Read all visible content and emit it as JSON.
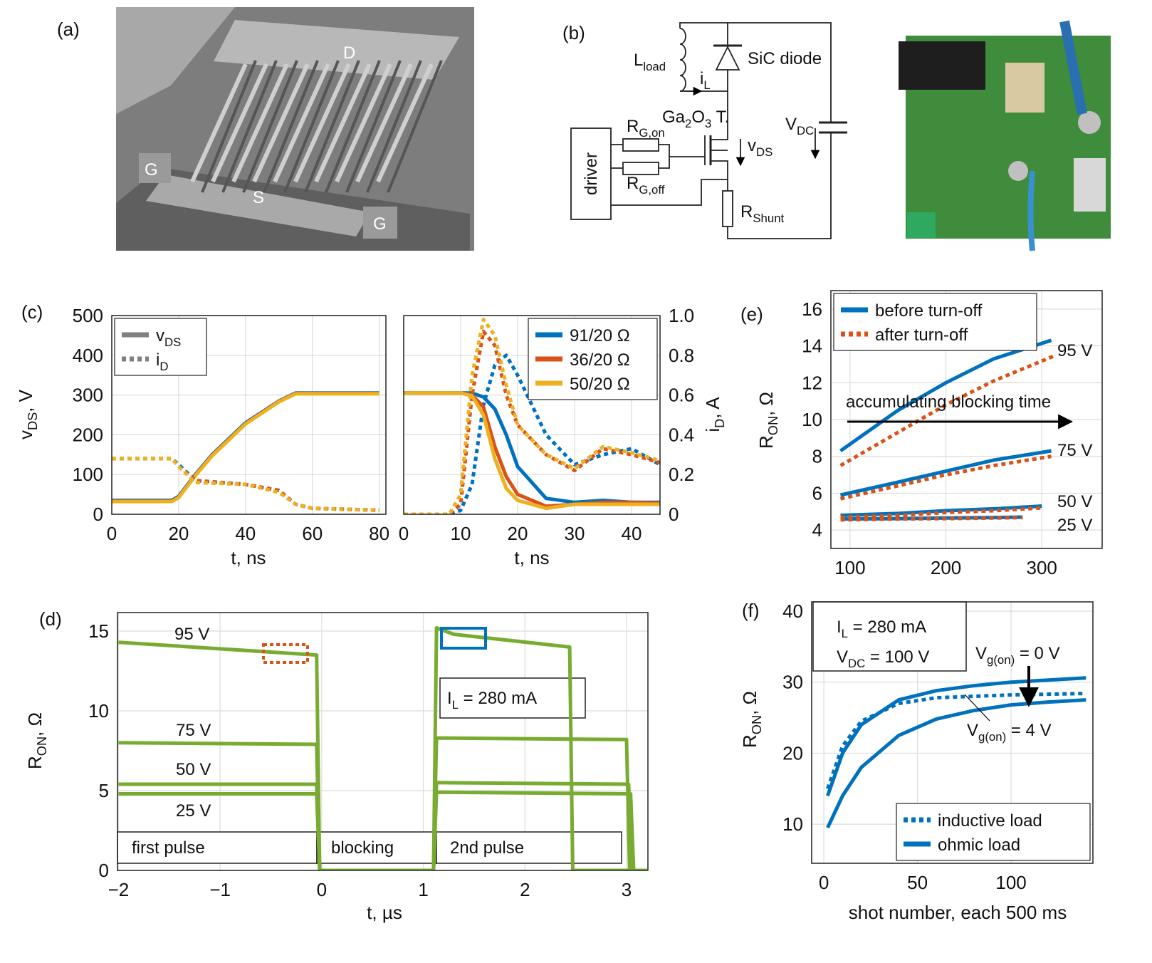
{
  "panel_labels": [
    "(a)",
    "(b)",
    "(c)",
    "(d)",
    "(e)",
    "(f)"
  ],
  "panel_a": {
    "labels": [
      "D",
      "G",
      "S",
      "G"
    ]
  },
  "panel_b": {
    "labels": [
      [
        "L",
        "load"
      ],
      [
        "i",
        "L"
      ],
      "SiC diode",
      [
        "Ga",
        "2",
        "O",
        "3",
        " T."
      ],
      [
        "R",
        "G,on"
      ],
      [
        "R",
        "G,off"
      ],
      "driver",
      [
        "v",
        "DS"
      ],
      [
        "V",
        "DC"
      ],
      [
        "R",
        "Shunt"
      ]
    ]
  },
  "chart_data": [
    {
      "type": "line",
      "xlim": [
        0,
        82
      ],
      "xticks": [
        0,
        20,
        40,
        60,
        80
      ],
      "ylim": [
        0,
        500
      ],
      "yticks": [
        0,
        100,
        200,
        300,
        400,
        500
      ],
      "y2lim": [
        0,
        1
      ],
      "grid": true,
      "xlabel": "t, ns",
      "ylabel": [
        "v",
        "DS",
        ", V"
      ],
      "legend": "upper left",
      "series": [
        {
          "name": [
            "v",
            "DS"
          ],
          "color": "#808080",
          "dash": false,
          "lines": [
            {
              "color": "#0072bd",
              "x": [
                0,
                18,
                20,
                25,
                30,
                40,
                50,
                55,
                60,
                70,
                80
              ],
              "values": [
                35,
                35,
                45,
                100,
                150,
                230,
                285,
                305,
                305,
                305,
                305
              ]
            },
            {
              "color": "#d95319",
              "x": [
                0,
                18,
                20,
                25,
                30,
                40,
                50,
                55,
                60,
                70,
                80
              ],
              "values": [
                33,
                33,
                43,
                98,
                148,
                228,
                284,
                304,
                304,
                304,
                304
              ]
            },
            {
              "color": "#edb120",
              "x": [
                0,
                18,
                20,
                25,
                30,
                40,
                50,
                55,
                60,
                70,
                80
              ],
              "values": [
                32,
                32,
                42,
                97,
                147,
                227,
                283,
                303,
                303,
                303,
                303
              ]
            }
          ]
        },
        {
          "name": [
            "i",
            "D"
          ],
          "color": "#808080",
          "dash": true,
          "lines": [
            {
              "color": "#0072bd",
              "axis": "y2",
              "x": [
                0,
                18,
                20,
                25,
                40,
                50,
                55,
                60,
                80
              ],
              "values": [
                0.28,
                0.28,
                0.25,
                0.17,
                0.15,
                0.12,
                0.05,
                0.03,
                0.02
              ]
            },
            {
              "color": "#d95319",
              "axis": "y2",
              "x": [
                0,
                18,
                20,
                25,
                40,
                50,
                55,
                60,
                80
              ],
              "values": [
                0.28,
                0.28,
                0.24,
                0.17,
                0.15,
                0.12,
                0.05,
                0.03,
                0.02
              ]
            },
            {
              "color": "#edb120",
              "axis": "y2",
              "x": [
                0,
                18,
                20,
                25,
                40,
                50,
                55,
                60,
                80
              ],
              "values": [
                0.28,
                0.28,
                0.24,
                0.16,
                0.15,
                0.11,
                0.05,
                0.03,
                0.02
              ]
            }
          ]
        }
      ]
    },
    {
      "type": "line",
      "xlim": [
        0,
        45
      ],
      "xticks": [
        0,
        10,
        20,
        30,
        40
      ],
      "ylim": [
        0,
        500
      ],
      "y2lim": [
        0,
        1
      ],
      "y2ticks": [
        0,
        0.2,
        0.4,
        0.6,
        0.8,
        {
          "value": 1,
          "label": "1.0"
        }
      ],
      "grid": true,
      "xlabel": "t, ns",
      "y2label": [
        "i",
        "D",
        ", A"
      ],
      "legend": "upper right",
      "series": [
        {
          "name": "91/20 Ω",
          "color": "#0072bd",
          "lines": [
            {
              "dash": false,
              "x": [
                0,
                8,
                10,
                12,
                14,
                16,
                18,
                20,
                25,
                30,
                35,
                40,
                45
              ],
              "values": [
                305,
                305,
                305,
                305,
                295,
                265,
                200,
                120,
                40,
                30,
                35,
                30,
                30
              ]
            },
            {
              "dash": true,
              "axis": "y2",
              "x": [
                0,
                8,
                10,
                12,
                14,
                16,
                18,
                20,
                25,
                30,
                35,
                40,
                45
              ],
              "values": [
                0,
                0,
                0.02,
                0.15,
                0.55,
                0.75,
                0.8,
                0.7,
                0.4,
                0.25,
                0.3,
                0.33,
                0.25
              ]
            }
          ]
        },
        {
          "name": "36/20 Ω",
          "color": "#d95319",
          "lines": [
            {
              "dash": false,
              "x": [
                0,
                8,
                10,
                12,
                14,
                16,
                18,
                20,
                25,
                30,
                35,
                40,
                45
              ],
              "values": [
                305,
                305,
                305,
                300,
                270,
                170,
                95,
                50,
                20,
                25,
                30,
                30,
                28
              ]
            },
            {
              "dash": true,
              "axis": "y2",
              "x": [
                0,
                8,
                10,
                12,
                14,
                16,
                18,
                20,
                25,
                30,
                35,
                40,
                45
              ],
              "values": [
                0,
                0,
                0.05,
                0.6,
                0.92,
                0.85,
                0.6,
                0.45,
                0.3,
                0.22,
                0.33,
                0.3,
                0.26
              ]
            }
          ]
        },
        {
          "name": "50/20 Ω",
          "color": "#edb120",
          "lines": [
            {
              "dash": false,
              "x": [
                0,
                8,
                10,
                12,
                14,
                16,
                18,
                20,
                25,
                30,
                35,
                40,
                45
              ],
              "values": [
                305,
                305,
                305,
                298,
                250,
                140,
                65,
                35,
                15,
                25,
                25,
                25,
                25
              ]
            },
            {
              "dash": true,
              "axis": "y2",
              "x": [
                0,
                8,
                10,
                12,
                14,
                16,
                18,
                20,
                25,
                30,
                35,
                40,
                45
              ],
              "values": [
                0,
                0,
                0.1,
                0.7,
                0.98,
                0.9,
                0.65,
                0.45,
                0.3,
                0.23,
                0.34,
                0.31,
                0.27
              ]
            }
          ]
        }
      ]
    },
    {
      "type": "line",
      "xlim": [
        -2.01,
        3.21
      ],
      "xticks": [
        {
          "value": -2,
          "label": "−2"
        },
        {
          "value": -1,
          "label": "−1"
        },
        0,
        1,
        2,
        3
      ],
      "ylim": [
        0,
        16.16
      ],
      "yticks": [
        0,
        5,
        10,
        15
      ],
      "grid": true,
      "xlabel": "t, µs",
      "ylabel": [
        "R",
        "ON",
        ", Ω"
      ],
      "annotations": [
        "95 V",
        "75 V",
        "50 V",
        "25 V",
        [
          "I",
          "L",
          " = 280 mA"
        ],
        "first pulse",
        "blocking",
        "2nd pulse"
      ],
      "series": [
        {
          "color": "#77ac30",
          "dash": false,
          "lines": [
            {
              "x": [
                -2,
                -0.05,
                -0.02,
                1.1,
                1.13,
                1.3,
                2.44,
                2.47,
                3.2
              ],
              "values": [
                14.3,
                13.5,
                0,
                0,
                15.2,
                14.8,
                14.0,
                0,
                0
              ]
            },
            {
              "x": [
                -2,
                -0.05,
                -0.02,
                1.1,
                1.13,
                3.0,
                3.03,
                3.2
              ],
              "values": [
                8,
                7.9,
                0,
                0,
                8.3,
                8.2,
                0,
                0
              ]
            },
            {
              "x": [
                -2,
                -0.05,
                -0.02,
                1.1,
                1.13,
                3.02,
                3.05,
                3.2
              ],
              "values": [
                5.4,
                5.4,
                0,
                0,
                5.5,
                5.4,
                0,
                0
              ]
            },
            {
              "x": [
                -2,
                -0.05,
                -0.02,
                1.1,
                1.13,
                3.04,
                3.07,
                3.2
              ],
              "values": [
                4.8,
                4.8,
                0,
                0,
                4.9,
                4.8,
                0,
                0
              ]
            }
          ]
        }
      ]
    },
    {
      "type": "line",
      "xlim": [
        80,
        363
      ],
      "xticks": [
        100,
        200,
        300
      ],
      "ylim": [
        3,
        17
      ],
      "yticks": [
        4,
        6,
        8,
        10,
        12,
        14,
        16
      ],
      "grid": true,
      "ylabel": [
        "R",
        "ON",
        ", Ω"
      ],
      "legend": "upper left",
      "annotations": [
        "95 V",
        "75 V",
        "50 V",
        "25 V",
        "accumulating blocking time"
      ],
      "series": [
        {
          "name": "before turn-off",
          "color": "#0072bd",
          "dash": false,
          "lines": [
            {
              "x": [
                90,
                150,
                200,
                250,
                310
              ],
              "values": [
                8.3,
                10.5,
                12,
                13.3,
                14.3
              ]
            },
            {
              "x": [
                90,
                150,
                200,
                250,
                310
              ],
              "values": [
                5.9,
                6.6,
                7.2,
                7.8,
                8.3
              ]
            },
            {
              "x": [
                90,
                150,
                200,
                250,
                300
              ],
              "values": [
                4.8,
                4.9,
                5.05,
                5.15,
                5.3
              ]
            },
            {
              "x": [
                90,
                150,
                200,
                250,
                280
              ],
              "values": [
                4.6,
                4.62,
                4.65,
                4.68,
                4.7
              ]
            }
          ]
        },
        {
          "name": "after turn-off",
          "color": "#d95319",
          "dash": true,
          "lines": [
            {
              "x": [
                90,
                150,
                200,
                250,
                315
              ],
              "values": [
                7.5,
                9.3,
                10.8,
                12.1,
                13.5
              ]
            },
            {
              "x": [
                90,
                150,
                200,
                250,
                310
              ],
              "values": [
                5.7,
                6.4,
                7,
                7.5,
                8
              ]
            },
            {
              "x": [
                90,
                150,
                200,
                250,
                300
              ],
              "values": [
                4.7,
                4.8,
                4.95,
                5.05,
                5.2
              ]
            },
            {
              "x": [
                90,
                150,
                200,
                250,
                280
              ],
              "values": [
                4.55,
                4.6,
                4.62,
                4.65,
                4.68
              ]
            }
          ]
        }
      ]
    },
    {
      "type": "line",
      "xlim": [
        -6.5,
        143.7
      ],
      "xticks": [
        0,
        50,
        100
      ],
      "ylim": [
        4.5,
        41.3
      ],
      "yticks": [
        10,
        20,
        30,
        40
      ],
      "grid": true,
      "xlabel": "shot number, each 500 ms",
      "ylabel": [
        "R",
        "ON",
        ", Ω"
      ],
      "legend": "lower right",
      "annotations": [
        [
          "I",
          "L",
          " = 280 mA"
        ],
        [
          "V",
          "DC",
          " = 100 V"
        ],
        [
          "V",
          "g(on)",
          " = 0 V"
        ],
        [
          "V",
          "g(on)",
          " = 4 V"
        ]
      ],
      "series": [
        {
          "name": "inductive load",
          "color": "#0072bd",
          "dash": true,
          "lines": [
            {
              "x": [
                2,
                10,
                20,
                40,
                60,
                80,
                100,
                120,
                140
              ],
              "values": [
                15,
                21,
                24.5,
                27,
                27.8,
                28,
                28.2,
                28.3,
                28.4
              ]
            }
          ]
        },
        {
          "name": "ohmic load",
          "color": "#0072bd",
          "dash": false,
          "lines": [
            {
              "x": [
                2,
                10,
                20,
                40,
                60,
                80,
                100,
                120,
                140
              ],
              "values": [
                14,
                20,
                24,
                27.5,
                28.8,
                29.5,
                30,
                30.3,
                30.6
              ]
            },
            {
              "x": [
                2,
                10,
                20,
                40,
                60,
                80,
                100,
                120,
                140
              ],
              "values": [
                9.5,
                14,
                18,
                22.5,
                24.8,
                26,
                26.8,
                27.2,
                27.5
              ]
            }
          ]
        }
      ]
    }
  ]
}
